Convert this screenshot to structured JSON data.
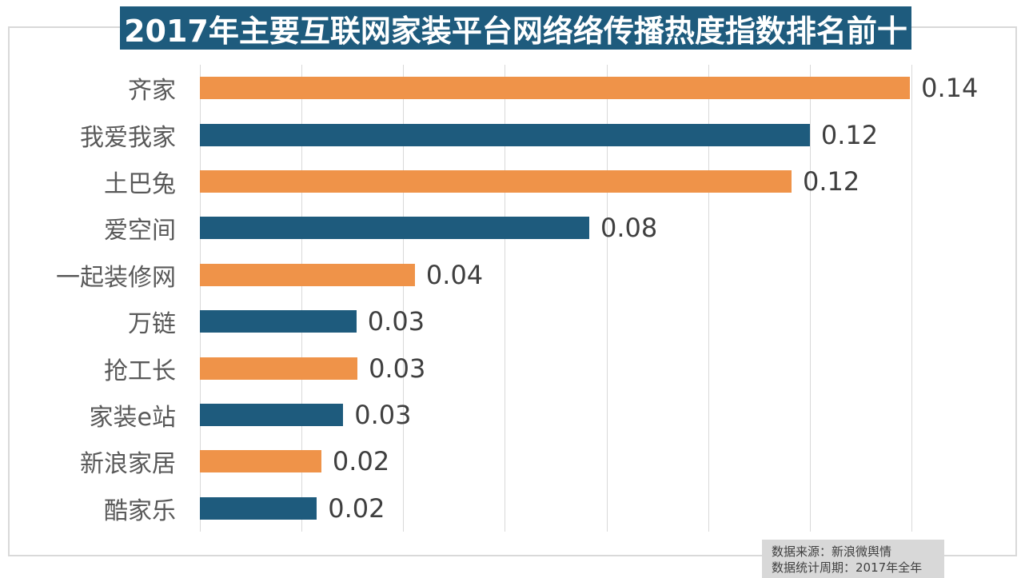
{
  "colors": {
    "orange": "#EF9349",
    "teal": "#1E5B7D",
    "title_bg": "#1E5B7D",
    "title_text": "#FFFFFF",
    "gridline": "#D9D9D9",
    "frame_border": "#D9D9D9",
    "category_label": "#595959",
    "value_label": "#3F3F3F",
    "source_bg": "#D8D8D8",
    "source_text": "#404040"
  },
  "source": {
    "line1": "数据来源：新浪微舆情",
    "line2": "数据统计周期：2017年全年"
  },
  "chart_data": {
    "type": "bar",
    "orientation": "horizontal",
    "title": "2017年主要互联网家装平台网络络传播热度指数排名前十",
    "categories": [
      "齐家",
      "我爱我家",
      "土巴兔",
      "爱空间",
      "一起装修网",
      "万链",
      "抢工长",
      "家装e站",
      "新浪家居",
      "酷家乐"
    ],
    "values": [
      0.14,
      0.12,
      0.12,
      0.08,
      0.04,
      0.03,
      0.03,
      0.03,
      0.02,
      0.02
    ],
    "value_labels": [
      "0.14",
      "0.12",
      "0.12",
      "0.08",
      "0.04",
      "0.03",
      "0.03",
      "0.03",
      "0.02",
      "0.02"
    ],
    "bar_values_precise": [
      0.1397,
      0.12,
      0.1164,
      0.0766,
      0.0423,
      0.0308,
      0.031,
      0.0282,
      0.0239,
      0.023
    ],
    "bar_colors_alternate": [
      "#EF9349",
      "#1E5B7D"
    ],
    "xlim": [
      0,
      0.14
    ],
    "gridline_step": 0.02,
    "grid": "vertical gridlines only, no x tick labels shown",
    "xlabel": "",
    "ylabel": "",
    "legend": "none"
  }
}
